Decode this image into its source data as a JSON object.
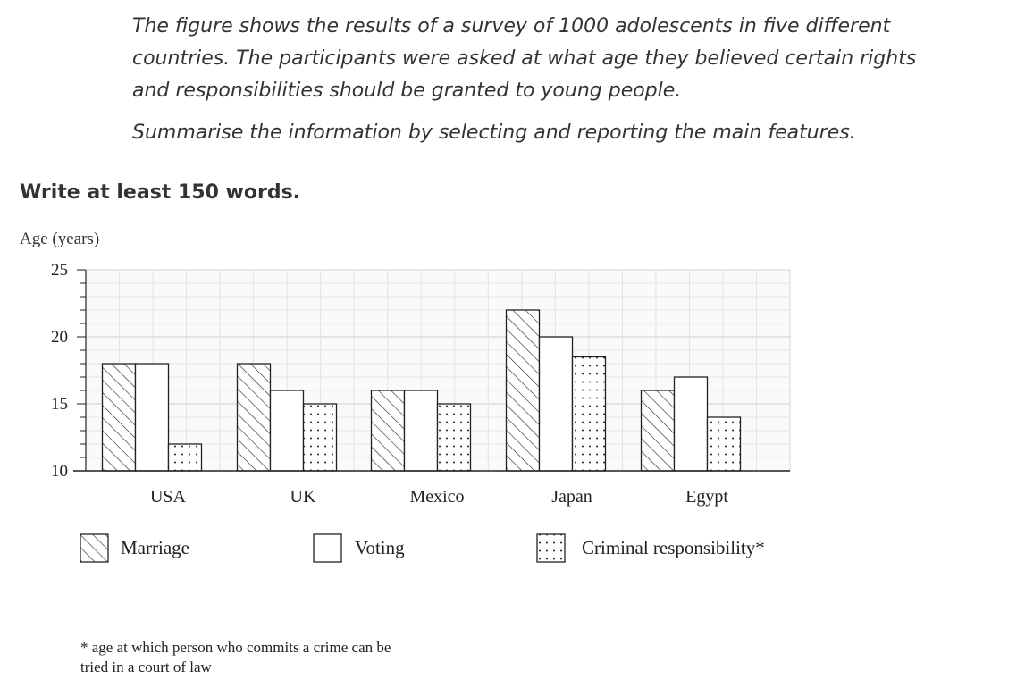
{
  "prompt": {
    "paragraph1_line1": "The figure shows the results of a survey of 1000 adolescents in five different",
    "paragraph1_line2": "countries. The participants were asked at what age they believed certain rights",
    "paragraph1_line3": "and responsibilities should be granted to young people.",
    "paragraph2": "Summarise the information by selecting and reporting the main features."
  },
  "instruction": "Write at least 150 words.",
  "chart_data": {
    "type": "bar",
    "title": "",
    "xlabel": "",
    "ylabel": "Age (years)",
    "ylim": [
      10,
      25
    ],
    "yticks": [
      10,
      15,
      20,
      25
    ],
    "grid": true,
    "legend_position": "bottom",
    "categories": [
      "USA",
      "UK",
      "Mexico",
      "Japan",
      "Egypt"
    ],
    "series": [
      {
        "name": "Marriage",
        "pattern": "hatch",
        "values": [
          18,
          18,
          16,
          22,
          16
        ]
      },
      {
        "name": "Voting",
        "pattern": "blank",
        "values": [
          18,
          16,
          16,
          20,
          17
        ]
      },
      {
        "name": "Criminal responsibility*",
        "pattern": "dots",
        "values": [
          12,
          15,
          15,
          18.5,
          14
        ]
      }
    ]
  },
  "footnote": {
    "line1": "* age at which person who commits a crime can be",
    "line2": "tried in a court of law"
  }
}
